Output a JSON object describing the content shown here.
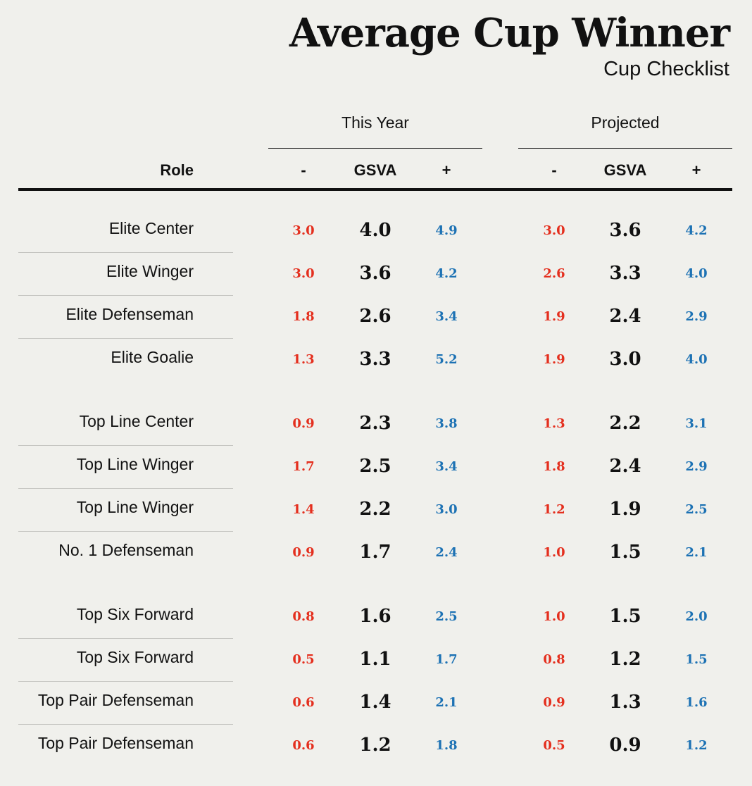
{
  "chart_data": {
    "type": "table",
    "title": "Average Cup Winner",
    "subtitle": "Cup Checklist",
    "groups": [
      "This Year",
      "Projected"
    ],
    "role_header": "Role",
    "column_headers": [
      "-",
      "GSVA",
      "+"
    ],
    "colors": {
      "low": "#e42f1e",
      "mid": "#111111",
      "high": "#1d72b4"
    },
    "sections": [
      {
        "rows": [
          {
            "role": "Elite Center",
            "this_year": [
              "3.0",
              "4.0",
              "4.9"
            ],
            "projected": [
              "3.0",
              "3.6",
              "4.2"
            ]
          },
          {
            "role": "Elite Winger",
            "this_year": [
              "3.0",
              "3.6",
              "4.2"
            ],
            "projected": [
              "2.6",
              "3.3",
              "4.0"
            ]
          },
          {
            "role": "Elite Defenseman",
            "this_year": [
              "1.8",
              "2.6",
              "3.4"
            ],
            "projected": [
              "1.9",
              "2.4",
              "2.9"
            ]
          },
          {
            "role": "Elite Goalie",
            "this_year": [
              "1.3",
              "3.3",
              "5.2"
            ],
            "projected": [
              "1.9",
              "3.0",
              "4.0"
            ]
          }
        ]
      },
      {
        "rows": [
          {
            "role": "Top Line Center",
            "this_year": [
              "0.9",
              "2.3",
              "3.8"
            ],
            "projected": [
              "1.3",
              "2.2",
              "3.1"
            ]
          },
          {
            "role": "Top Line Winger",
            "this_year": [
              "1.7",
              "2.5",
              "3.4"
            ],
            "projected": [
              "1.8",
              "2.4",
              "2.9"
            ]
          },
          {
            "role": "Top Line Winger",
            "this_year": [
              "1.4",
              "2.2",
              "3.0"
            ],
            "projected": [
              "1.2",
              "1.9",
              "2.5"
            ]
          },
          {
            "role": "No. 1 Defenseman",
            "this_year": [
              "0.9",
              "1.7",
              "2.4"
            ],
            "projected": [
              "1.0",
              "1.5",
              "2.1"
            ]
          }
        ]
      },
      {
        "rows": [
          {
            "role": "Top Six Forward",
            "this_year": [
              "0.8",
              "1.6",
              "2.5"
            ],
            "projected": [
              "1.0",
              "1.5",
              "2.0"
            ]
          },
          {
            "role": "Top Six Forward",
            "this_year": [
              "0.5",
              "1.1",
              "1.7"
            ],
            "projected": [
              "0.8",
              "1.2",
              "1.5"
            ]
          },
          {
            "role": "Top Pair Defenseman",
            "this_year": [
              "0.6",
              "1.4",
              "2.1"
            ],
            "projected": [
              "0.9",
              "1.3",
              "1.6"
            ]
          },
          {
            "role": "Top Pair Defenseman",
            "this_year": [
              "0.6",
              "1.2",
              "1.8"
            ],
            "projected": [
              "0.5",
              "0.9",
              "1.2"
            ]
          }
        ]
      }
    ]
  }
}
